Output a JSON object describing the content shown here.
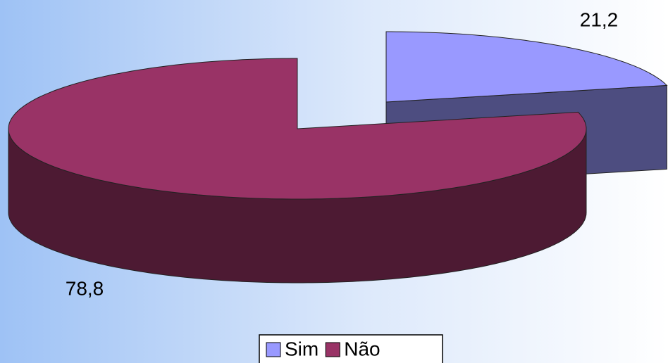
{
  "chart_data": {
    "type": "pie3d",
    "categories": [
      "Sim",
      "Não"
    ],
    "values": [
      21.2,
      78.8
    ],
    "value_labels": [
      "21,2",
      "78,8"
    ],
    "colors": [
      "#9999ff",
      "#993366"
    ]
  }
}
